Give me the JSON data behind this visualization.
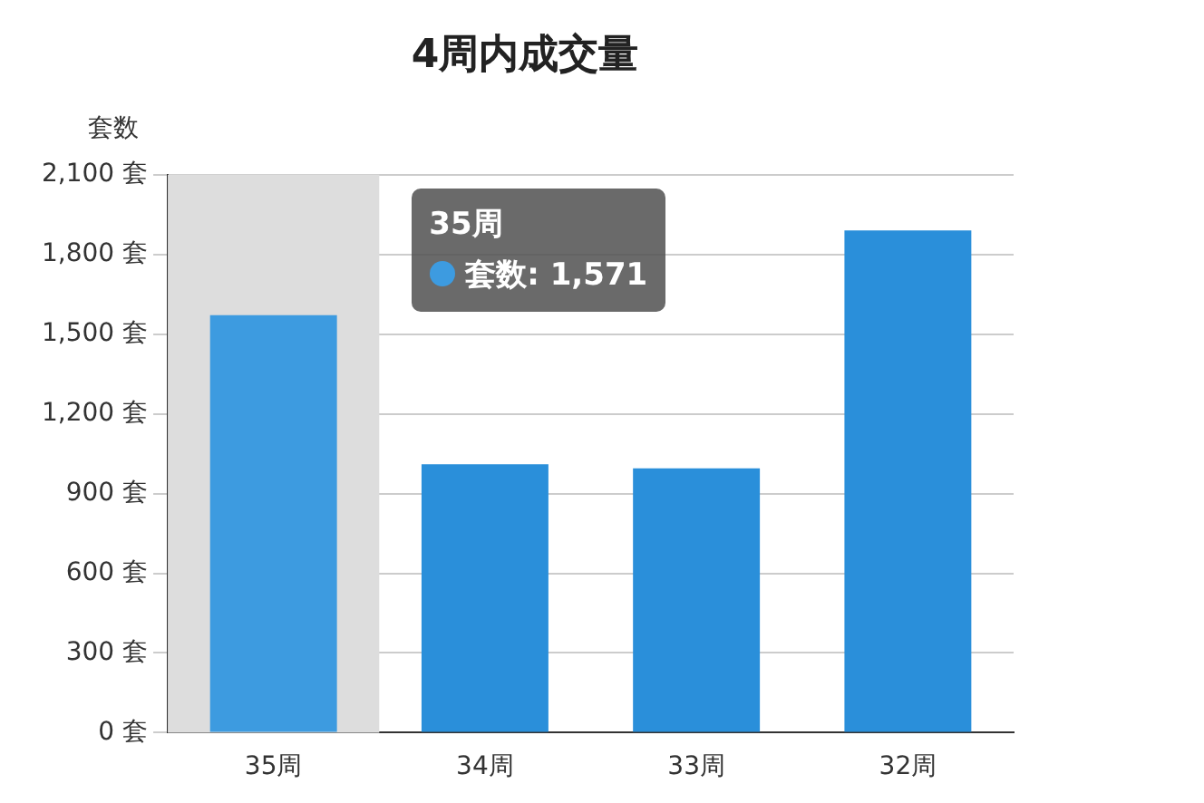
{
  "chart_data": {
    "type": "bar",
    "title": "4周内成交量",
    "ylabel": "套数",
    "categories": [
      "35周",
      "34周",
      "33周",
      "32周"
    ],
    "values": [
      1571,
      1010,
      995,
      1890
    ],
    "colors": [
      "#3d9be0",
      "#2a8fda",
      "#2a8fda",
      "#2a8fda"
    ],
    "ylim": [
      0,
      2100
    ],
    "yticks": [
      {
        "value": 0,
        "label": "0 套"
      },
      {
        "value": 300,
        "label": "300 套"
      },
      {
        "value": 600,
        "label": "600 套"
      },
      {
        "value": 900,
        "label": "900 套"
      },
      {
        "value": 1200,
        "label": "1,200 套"
      },
      {
        "value": 1500,
        "label": "1,500 套"
      },
      {
        "value": 1800,
        "label": "1,800 套"
      },
      {
        "value": 2100,
        "label": "2,100 套"
      }
    ],
    "grid": "y",
    "legend": false,
    "bands": [
      {
        "axis": "x",
        "from": "35周",
        "to": "35周",
        "color": "#dddddd"
      }
    ],
    "annotations": [
      "35周",
      "套数: 1,571"
    ]
  }
}
